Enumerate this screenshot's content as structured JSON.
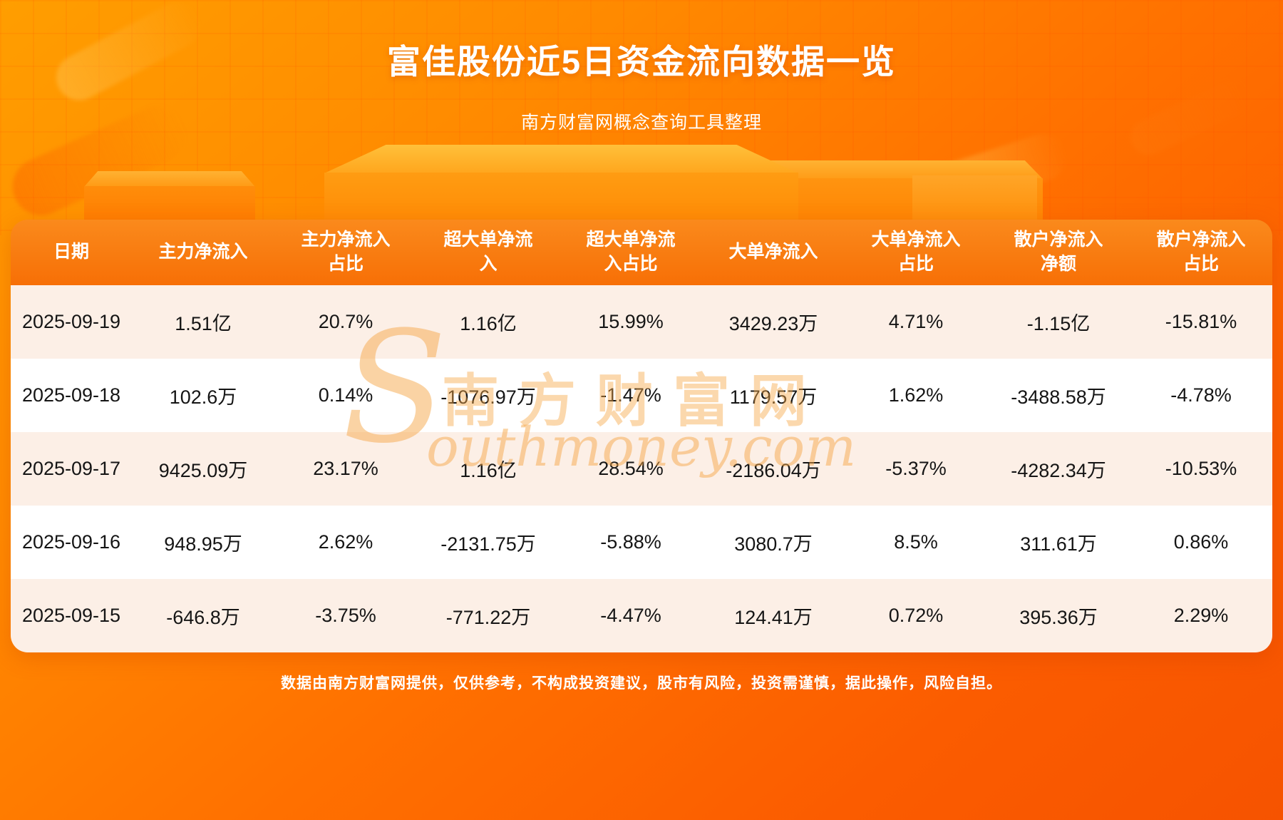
{
  "page": {
    "title": "富佳股份近5日资金流向数据一览",
    "subtitle": "南方财富网概念查询工具整理",
    "disclaimer": "数据由南方财富网提供，仅供参考，不构成投资建议，股市有风险，投资需谨慎，据此操作，风险自担。"
  },
  "watermark": {
    "initial": "S",
    "cn": "南方财富网",
    "en_rest": "outhmoney.com"
  },
  "colors": {
    "bg_gradient_top": "#ff9e00",
    "bg_gradient_bottom": "#f65300",
    "table_header": "#f97c12",
    "row_odd": "#fcefe6",
    "row_even": "#ffffff",
    "text_dark": "#151515",
    "text_white": "#ffffff"
  },
  "chart_data": {
    "type": "table",
    "title": "富佳股份近5日资金流向数据一览",
    "columns": [
      "日期",
      "主力净流入",
      "主力净流入\n占比",
      "超大单净流\n入",
      "超大单净流\n入占比",
      "大单净流入",
      "大单净流入\n占比",
      "散户净流入\n净额",
      "散户净流入\n占比"
    ],
    "rows": [
      [
        "2025-09-19",
        "1.51亿",
        "20.7%",
        "1.16亿",
        "15.99%",
        "3429.23万",
        "4.71%",
        "-1.15亿",
        "-15.81%"
      ],
      [
        "2025-09-18",
        "102.6万",
        "0.14%",
        "-1076.97万",
        "-1.47%",
        "1179.57万",
        "1.62%",
        "-3488.58万",
        "-4.78%"
      ],
      [
        "2025-09-17",
        "9425.09万",
        "23.17%",
        "1.16亿",
        "28.54%",
        "-2186.04万",
        "-5.37%",
        "-4282.34万",
        "-10.53%"
      ],
      [
        "2025-09-16",
        "948.95万",
        "2.62%",
        "-2131.75万",
        "-5.88%",
        "3080.7万",
        "8.5%",
        "311.61万",
        "0.86%"
      ],
      [
        "2025-09-15",
        "-646.8万",
        "-3.75%",
        "-771.22万",
        "-4.47%",
        "124.41万",
        "0.72%",
        "395.36万",
        "2.29%"
      ]
    ]
  }
}
